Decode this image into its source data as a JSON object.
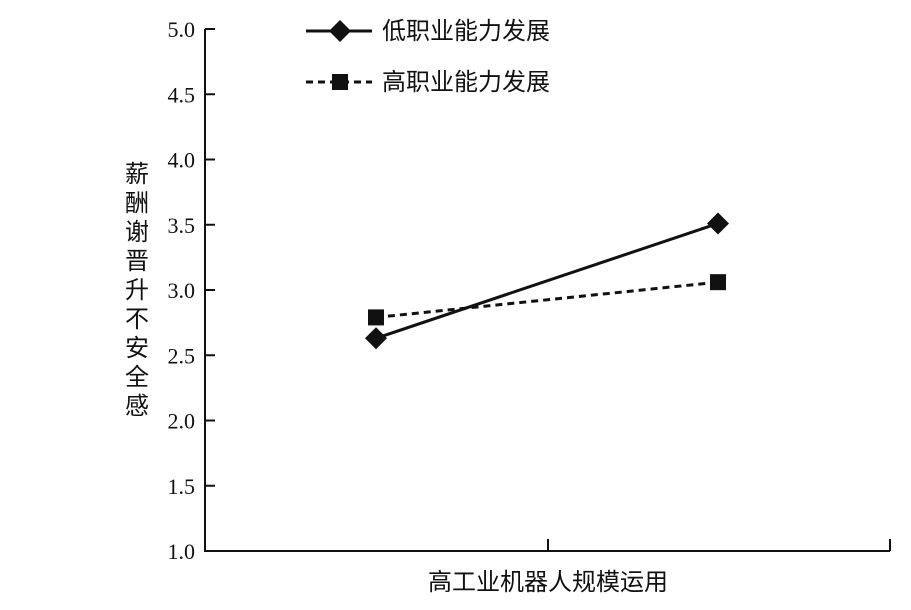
{
  "chart_data": {
    "type": "line",
    "xlabel": "高工业机器人规模运用",
    "ylabel": "薪酬谢晋升不安全感",
    "ylim": [
      1.0,
      5.0
    ],
    "yticks": [
      "1.0",
      "1.5",
      "2.0",
      "2.5",
      "3.0",
      "3.5",
      "4.0",
      "4.5",
      "5.0"
    ],
    "legend_position": "top-left",
    "grid": false,
    "series": [
      {
        "name": "低职业能力发展",
        "values": [
          2.63,
          3.51
        ],
        "line_style": "solid",
        "marker": "diamond",
        "color": "#111111"
      },
      {
        "name": "高职业能力发展",
        "values": [
          2.79,
          3.06
        ],
        "line_style": "dashed",
        "marker": "square",
        "color": "#111111"
      }
    ]
  }
}
